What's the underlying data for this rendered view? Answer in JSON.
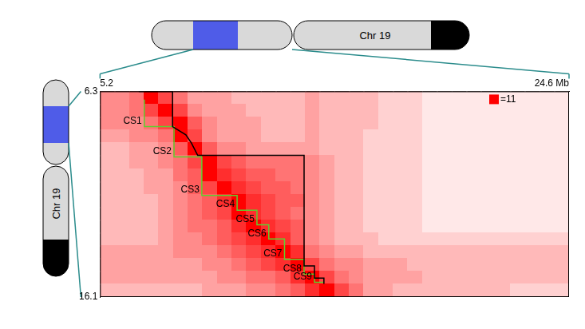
{
  "chart_data": {
    "type": "heatmap",
    "xlim": [
      5.2,
      24.6
    ],
    "xticks": [
      5.2,
      {
        "value": 24.6,
        "label": "24.6 Mb"
      }
    ],
    "ylim": [
      6.3,
      16.1
    ],
    "yticks": [
      6.3,
      16.1
    ],
    "grid": false,
    "color": "#ff0000",
    "color_range": [
      0,
      11
    ],
    "color_ticks": [
      {
        "value": 11,
        "label": "=11"
      }
    ],
    "cells": [
      [
        5,
        5,
        6,
        11,
        8,
        6,
        4,
        4,
        4,
        3,
        3,
        3,
        3,
        3,
        4,
        3,
        3,
        3,
        3,
        2,
        2,
        2,
        1,
        1,
        1,
        1,
        1,
        1,
        1,
        1,
        1,
        1
      ],
      [
        5,
        5,
        6,
        8,
        11,
        8,
        5,
        4,
        4,
        4,
        3,
        3,
        3,
        3,
        4,
        3,
        3,
        3,
        3,
        2,
        2,
        2,
        1,
        1,
        1,
        1,
        1,
        1,
        1,
        1,
        1,
        1
      ],
      [
        5,
        5,
        5,
        6,
        8,
        11,
        7,
        5,
        4,
        4,
        4,
        3,
        3,
        3,
        4,
        3,
        3,
        3,
        3,
        2,
        2,
        2,
        1,
        1,
        1,
        1,
        1,
        1,
        1,
        1,
        1,
        1
      ],
      [
        4,
        4,
        5,
        5,
        6,
        11,
        8,
        5,
        4,
        4,
        4,
        3,
        3,
        3,
        4,
        3,
        3,
        3,
        2,
        2,
        2,
        2,
        1,
        1,
        1,
        1,
        1,
        1,
        1,
        1,
        1,
        1
      ],
      [
        3,
        3,
        4,
        4,
        5,
        7,
        11,
        7,
        5,
        5,
        4,
        4,
        4,
        4,
        4,
        3,
        3,
        3,
        2,
        2,
        2,
        2,
        1,
        1,
        1,
        1,
        1,
        1,
        1,
        1,
        1,
        1
      ],
      [
        3,
        3,
        4,
        4,
        5,
        6,
        8,
        11,
        8,
        7,
        6,
        6,
        6,
        6,
        5,
        4,
        3,
        3,
        2,
        2,
        2,
        2,
        1,
        1,
        1,
        1,
        1,
        1,
        1,
        1,
        1,
        1
      ],
      [
        3,
        3,
        3,
        4,
        4,
        6,
        7,
        11,
        9,
        8,
        7,
        7,
        6,
        6,
        5,
        4,
        3,
        3,
        2,
        2,
        2,
        2,
        1,
        1,
        1,
        1,
        1,
        1,
        1,
        1,
        1,
        1
      ],
      [
        3,
        3,
        3,
        4,
        4,
        5,
        7,
        8,
        11,
        9,
        8,
        7,
        7,
        6,
        5,
        4,
        3,
        3,
        2,
        2,
        2,
        2,
        1,
        1,
        1,
        1,
        1,
        1,
        1,
        1,
        1,
        1
      ],
      [
        3,
        3,
        3,
        3,
        4,
        5,
        6,
        7,
        9,
        11,
        9,
        8,
        7,
        7,
        5,
        4,
        3,
        3,
        2,
        2,
        2,
        2,
        1,
        1,
        1,
        1,
        1,
        1,
        1,
        1,
        1,
        1
      ],
      [
        3,
        3,
        3,
        3,
        4,
        5,
        6,
        7,
        8,
        11,
        9,
        8,
        7,
        6,
        5,
        4,
        3,
        3,
        2,
        2,
        2,
        2,
        1,
        1,
        1,
        1,
        1,
        1,
        1,
        1,
        1,
        1
      ],
      [
        3,
        3,
        3,
        3,
        4,
        5,
        6,
        6,
        7,
        9,
        11,
        9,
        8,
        7,
        5,
        4,
        3,
        3,
        2,
        2,
        2,
        2,
        1,
        1,
        1,
        1,
        1,
        1,
        1,
        1,
        1,
        1
      ],
      [
        3,
        3,
        3,
        3,
        4,
        5,
        5,
        6,
        7,
        8,
        9,
        11,
        9,
        7,
        5,
        4,
        3,
        3,
        3,
        2,
        2,
        2,
        2,
        2,
        2,
        2,
        2,
        2,
        2,
        2,
        2,
        2
      ],
      [
        4,
        4,
        4,
        4,
        4,
        5,
        5,
        5,
        6,
        7,
        8,
        9,
        11,
        9,
        6,
        5,
        4,
        4,
        3,
        3,
        3,
        3,
        3,
        3,
        3,
        3,
        3,
        3,
        3,
        3,
        3,
        3
      ],
      [
        4,
        4,
        4,
        4,
        4,
        4,
        4,
        5,
        5,
        6,
        7,
        8,
        9,
        11,
        8,
        6,
        5,
        5,
        4,
        4,
        4,
        3,
        3,
        3,
        3,
        3,
        3,
        3,
        3,
        3,
        3,
        3
      ],
      [
        4,
        4,
        4,
        4,
        4,
        4,
        4,
        4,
        5,
        5,
        6,
        6,
        7,
        9,
        11,
        8,
        6,
        5,
        4,
        4,
        4,
        4,
        3,
        3,
        3,
        3,
        3,
        3,
        3,
        3,
        3,
        3
      ],
      [
        3,
        3,
        3,
        3,
        3,
        3,
        3,
        4,
        4,
        4,
        5,
        5,
        6,
        7,
        9,
        11,
        8,
        6,
        4,
        4,
        3,
        3,
        3,
        3,
        3,
        3,
        3,
        3,
        2,
        2,
        2,
        2
      ]
    ],
    "lines": [
      {
        "color": "#000000",
        "x": [
          6.8,
          8.2,
          8.2,
          8.75,
          8.98,
          9.24,
          13.64,
          13.64,
          14.07,
          14.07,
          14.46,
          14.46
        ],
        "y": [
          6.3,
          6.3,
          7.98,
          8.37,
          8.76,
          9.35,
          9.35,
          14.62,
          14.62,
          15.2,
          15.2,
          15.47
        ]
      },
      {
        "color": "#5fcf2f",
        "x": [
          7.03,
          7.03,
          8.26,
          8.26,
          9.41,
          9.41,
          10.87,
          10.87,
          11.69,
          11.69,
          12.18,
          12.18,
          12.83,
          12.83,
          13.64,
          13.64,
          14.07,
          14.07,
          14.46
        ],
        "y": [
          6.69,
          7.98,
          7.98,
          9.42,
          9.42,
          11.26,
          11.26,
          11.96,
          11.96,
          12.66,
          12.66,
          13.33,
          13.33,
          14.3,
          14.3,
          15.01,
          15.01,
          15.4,
          15.4
        ]
      }
    ],
    "annotations": [
      {
        "text": "CS1",
        "x": 7.03,
        "y": 7.98
      },
      {
        "text": "CS2",
        "x": 8.26,
        "y": 9.42
      },
      {
        "text": "CS3",
        "x": 9.41,
        "y": 11.26
      },
      {
        "text": "CS4",
        "x": 10.87,
        "y": 11.96
      },
      {
        "text": "CS5",
        "x": 11.69,
        "y": 12.66
      },
      {
        "text": "CS6",
        "x": 12.18,
        "y": 13.33
      },
      {
        "text": "CS7",
        "x": 12.83,
        "y": 14.3
      },
      {
        "text": "CS8",
        "x": 13.64,
        "y": 15.01
      },
      {
        "text": "CS9",
        "x": 14.07,
        "y": 15.4
      }
    ]
  },
  "ideogram": {
    "label": "Chr 19"
  }
}
